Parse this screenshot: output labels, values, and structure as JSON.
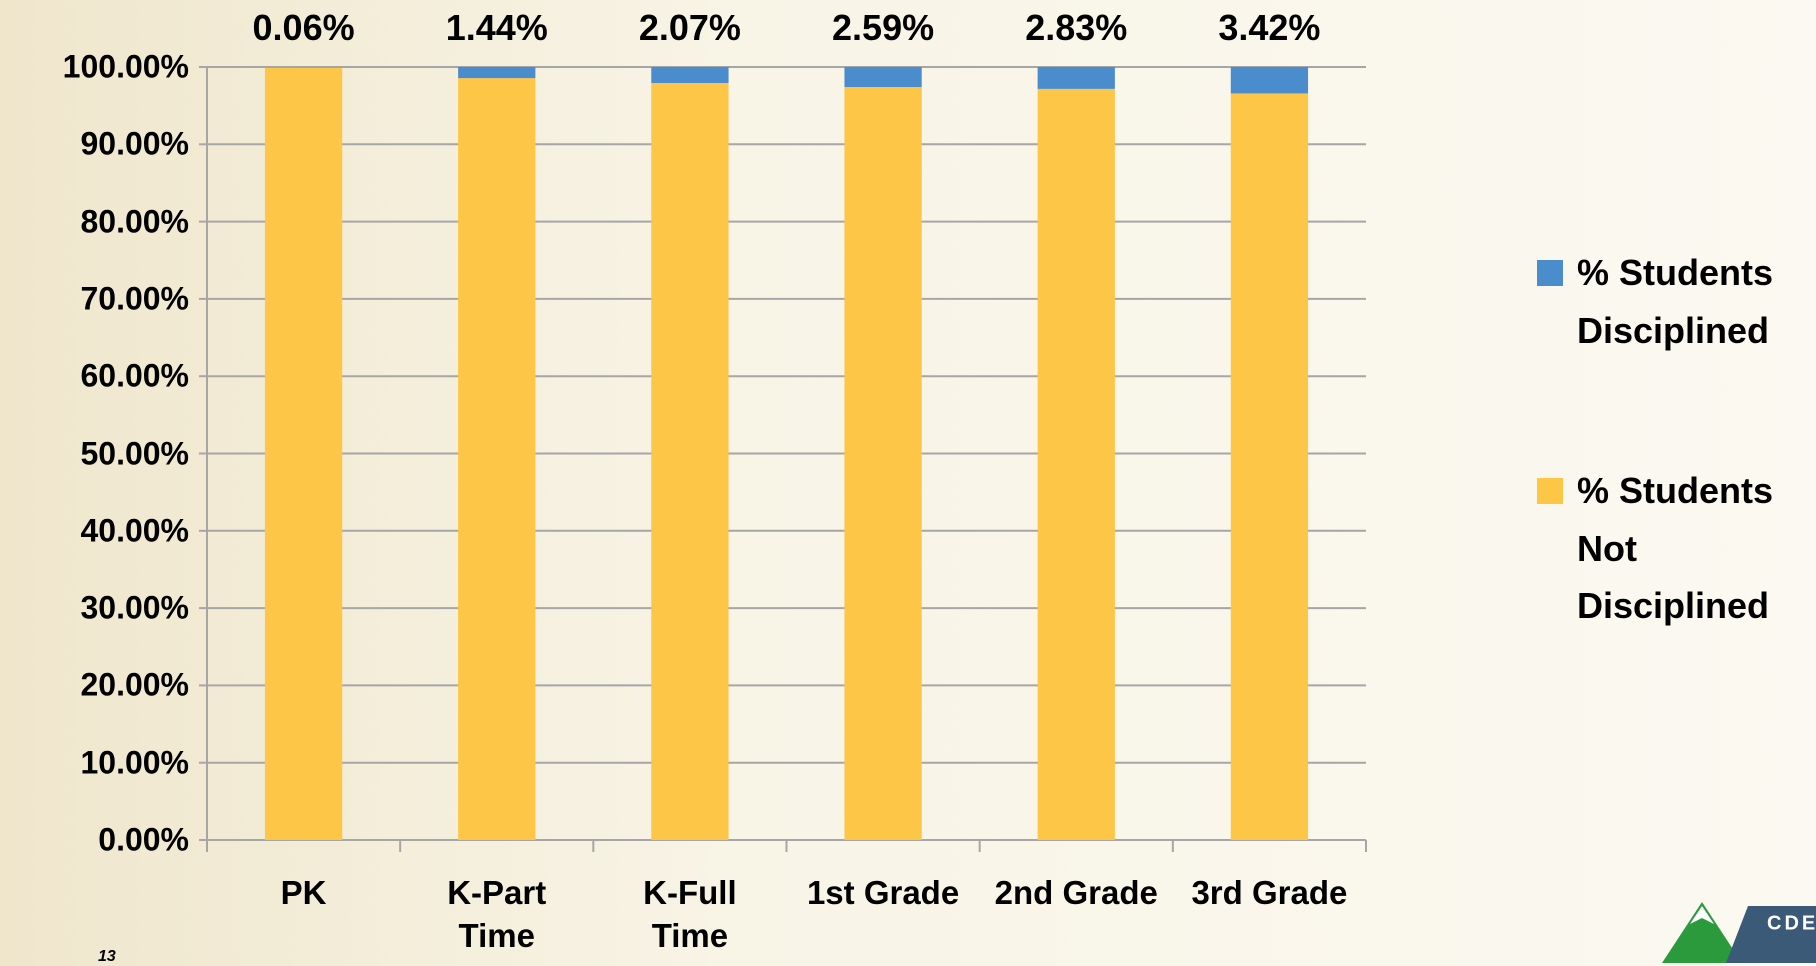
{
  "chart_data": {
    "type": "stacked_bar",
    "categories": [
      "PK",
      "K-Part Time",
      "K-Full Time",
      "1st Grade",
      "2nd Grade",
      "3rd Grade"
    ],
    "series": [
      {
        "name": "% Students Disciplined",
        "color": "#4a8ccc",
        "values": [
          0.06,
          1.44,
          2.07,
          2.59,
          2.83,
          3.42
        ],
        "value_labels": [
          "0.06%",
          "1.44%",
          "2.07%",
          "2.59%",
          "2.83%",
          "3.42%"
        ]
      },
      {
        "name": "% Students Not Disciplined",
        "color": "#fdc647",
        "values": [
          99.94,
          98.56,
          97.93,
          97.41,
          97.17,
          96.58
        ]
      }
    ],
    "ylim": [
      0,
      100
    ],
    "yticks": [
      {
        "value": 0,
        "label": "0.00%"
      },
      {
        "value": 10,
        "label": "10.00%"
      },
      {
        "value": 20,
        "label": "20.00%"
      },
      {
        "value": 30,
        "label": "30.00%"
      },
      {
        "value": 40,
        "label": "40.00%"
      },
      {
        "value": 50,
        "label": "50.00%"
      },
      {
        "value": 60,
        "label": "60.00%"
      },
      {
        "value": 70,
        "label": "70.00%"
      },
      {
        "value": 80,
        "label": "80.00%"
      },
      {
        "value": 90,
        "label": "90.00%"
      },
      {
        "value": 100,
        "label": "100.00%"
      }
    ],
    "grid": true,
    "legend": "right"
  },
  "page_number": "13",
  "logo_text": "CDE"
}
